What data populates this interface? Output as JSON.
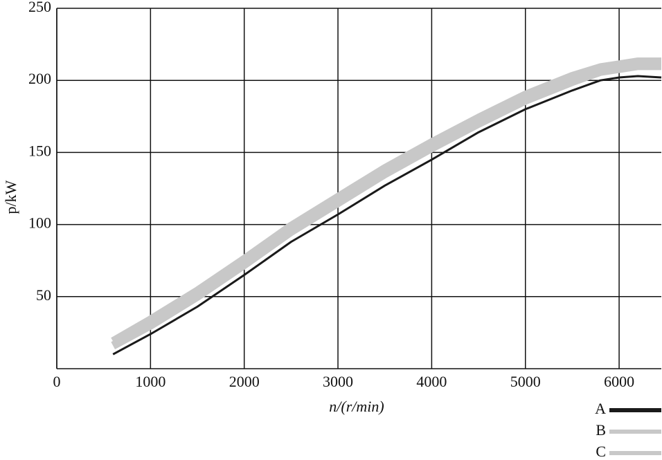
{
  "chart_data": {
    "type": "line",
    "x_label": "n/(r/min)",
    "y_label": "p/kW",
    "x": [
      600,
      1000,
      1500,
      2000,
      2500,
      3000,
      3500,
      4000,
      4500,
      5000,
      5500,
      5800,
      6000,
      6200,
      6450
    ],
    "series": [
      {
        "name": "A",
        "color": "#1a1a1a",
        "width": 3,
        "values": [
          10,
          24,
          43,
          65,
          88,
          107,
          127,
          145,
          164,
          180,
          193,
          200,
          202,
          203,
          202
        ]
      },
      {
        "name": "B",
        "color": "#c8c8c8",
        "width": 12,
        "values": [
          19,
          34,
          54,
          76,
          99,
          119,
          139,
          157,
          174,
          190,
          203,
          209,
          211,
          213,
          213
        ]
      },
      {
        "name": "C",
        "color": "#c8c8c8",
        "width": 12,
        "values": [
          16,
          30,
          50,
          72,
          95,
          115,
          135,
          153,
          170,
          186,
          199,
          206,
          208,
          210,
          210
        ]
      }
    ],
    "xlim": [
      0,
      6450
    ],
    "ylim": [
      0,
      250
    ],
    "xticks": [
      0,
      1000,
      2000,
      3000,
      4000,
      5000,
      6000
    ],
    "yticks": [
      50,
      100,
      150,
      200,
      250
    ],
    "grid": true,
    "legend": "bottom-right"
  }
}
